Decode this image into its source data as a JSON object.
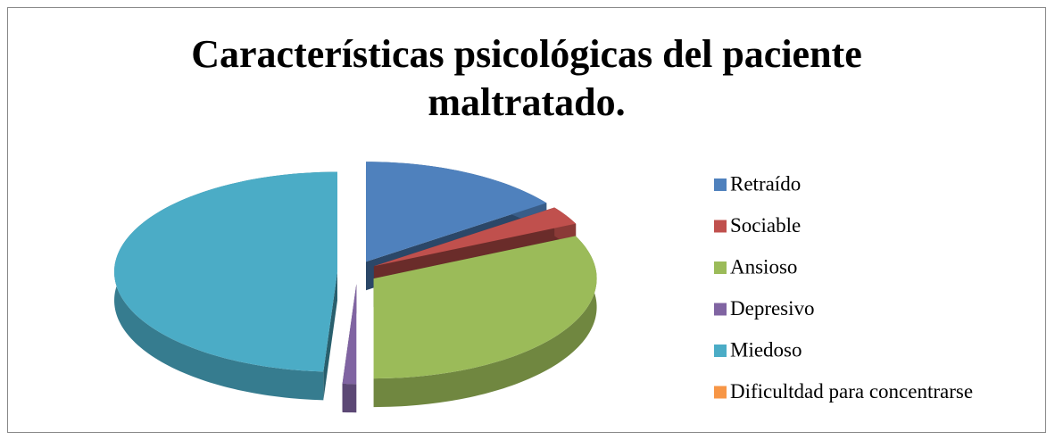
{
  "chart_data": {
    "type": "pie",
    "title": "Características psicológicas del paciente maltratado.",
    "categories": [
      "Retraído",
      "Sociable",
      "Ansioso",
      "Depresivo",
      "Miedoso",
      "Dificultdad para concentrarse"
    ],
    "values": [
      15,
      3,
      32,
      1,
      49,
      0
    ],
    "colors": [
      "#4f81bd",
      "#c0504d",
      "#9bbb59",
      "#8064a2",
      "#4bacc6",
      "#f79646"
    ],
    "legend": "right"
  }
}
